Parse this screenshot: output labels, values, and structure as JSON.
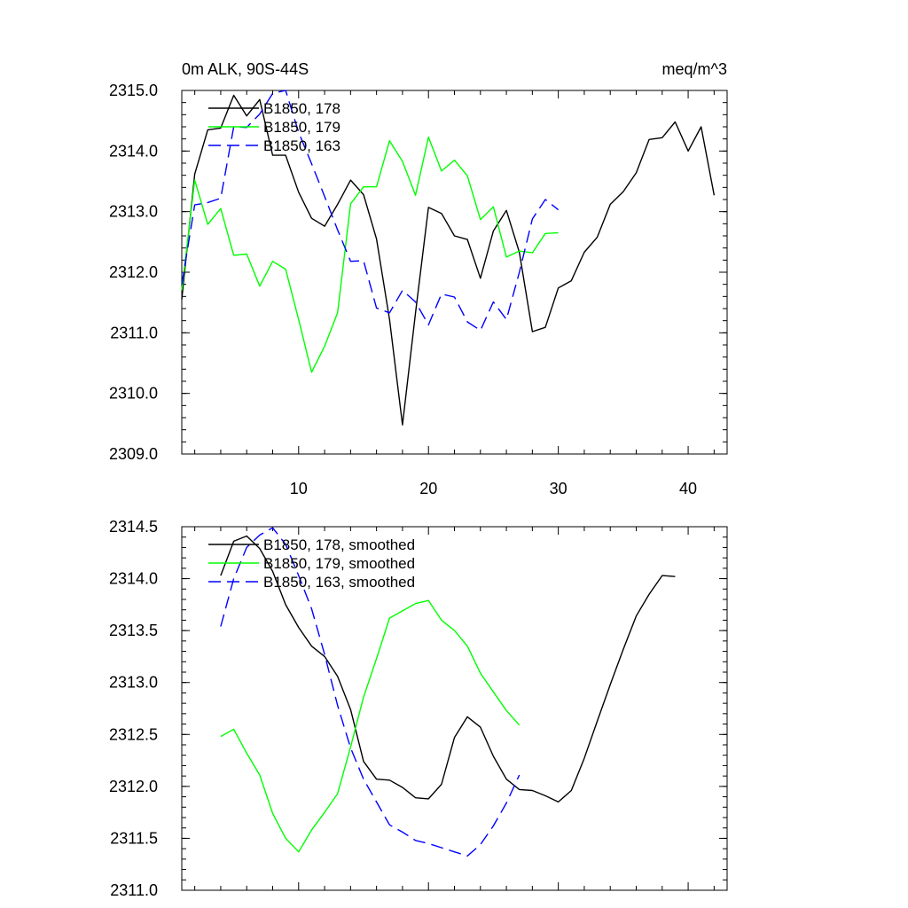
{
  "chart_data": [
    {
      "type": "line",
      "title_left": "0m ALK, 90S-44S",
      "title_right": "meq/m^3",
      "xlim": [
        1,
        43
      ],
      "ylim": [
        2309.0,
        2315.0
      ],
      "xticks": [
        10,
        20,
        30,
        40
      ],
      "xtick_labels": [
        "10",
        "20",
        "30",
        "40"
      ],
      "yticks": [
        2309.0,
        2310.0,
        2311.0,
        2312.0,
        2313.0,
        2314.0,
        2315.0
      ],
      "ytick_labels": [
        "2309.0",
        "2310.0",
        "2311.0",
        "2312.0",
        "2313.0",
        "2314.0",
        "2315.0"
      ],
      "legend_position": "top-left",
      "series": [
        {
          "name": "B1850, 178",
          "color": "#000000",
          "dash": "solid",
          "x": [
            1,
            2,
            3,
            4,
            5,
            6,
            7,
            8,
            9,
            10,
            11,
            12,
            13,
            14,
            15,
            16,
            17,
            18,
            19,
            20,
            21,
            22,
            23,
            24,
            25,
            26,
            27,
            28,
            29,
            30,
            31,
            32,
            33,
            34,
            35,
            36,
            37,
            38,
            39,
            40,
            41,
            42
          ],
          "y": [
            2311.55,
            2313.62,
            2314.35,
            2314.38,
            2314.92,
            2314.58,
            2314.85,
            2313.93,
            2313.93,
            2313.32,
            2312.89,
            2312.76,
            2313.12,
            2313.52,
            2313.28,
            2312.55,
            2311.22,
            2309.48,
            2311.33,
            2313.07,
            2312.97,
            2312.6,
            2312.54,
            2311.9,
            2312.68,
            2313.02,
            2312.33,
            2311.02,
            2311.09,
            2311.74,
            2311.86,
            2312.33,
            2312.58,
            2313.12,
            2313.33,
            2313.64,
            2314.19,
            2314.22,
            2314.48,
            2314.0,
            2314.4,
            2313.27
          ]
        },
        {
          "name": "B1850, 179",
          "color": "#00ff00",
          "dash": "solid",
          "x": [
            1,
            2,
            3,
            4,
            5,
            6,
            7,
            8,
            9,
            10,
            11,
            12,
            13,
            14,
            15,
            16,
            17,
            18,
            19,
            20,
            21,
            22,
            23,
            24,
            25,
            26,
            27,
            28,
            29,
            30
          ],
          "y": [
            2311.7,
            2313.52,
            2312.79,
            2313.05,
            2312.28,
            2312.3,
            2311.77,
            2312.18,
            2312.05,
            2311.22,
            2310.35,
            2310.78,
            2311.33,
            2313.13,
            2313.41,
            2313.41,
            2314.17,
            2313.83,
            2313.27,
            2314.23,
            2313.67,
            2313.85,
            2313.59,
            2312.87,
            2313.08,
            2312.25,
            2312.35,
            2312.32,
            2312.64,
            2312.65
          ]
        },
        {
          "name": "B1850, 163",
          "color": "#0000ff",
          "dash": "dashed",
          "x": [
            1,
            2,
            3,
            4,
            5,
            6,
            7,
            8,
            9,
            10,
            11,
            12,
            13,
            14,
            15,
            16,
            17,
            18,
            19,
            20,
            21,
            22,
            23,
            24,
            25,
            26,
            27,
            28,
            29,
            30
          ],
          "y": [
            2311.8,
            2313.11,
            2313.15,
            2313.22,
            2314.4,
            2314.39,
            2314.61,
            2314.95,
            2315.0,
            2314.31,
            2313.79,
            2313.25,
            2312.7,
            2312.18,
            2312.19,
            2311.41,
            2311.33,
            2311.7,
            2311.51,
            2311.13,
            2311.64,
            2311.59,
            2311.18,
            2311.04,
            2311.51,
            2311.22,
            2312.0,
            2312.88,
            2313.2,
            2313.03
          ]
        }
      ]
    },
    {
      "type": "line",
      "xlim": [
        1,
        43
      ],
      "ylim": [
        2311.0,
        2314.5
      ],
      "xticks": [
        10,
        20,
        30,
        40
      ],
      "yticks": [
        2311.0,
        2311.5,
        2312.0,
        2312.5,
        2313.0,
        2313.5,
        2314.0,
        2314.5
      ],
      "ytick_labels": [
        "2311.0",
        "2311.5",
        "2312.0",
        "2312.5",
        "2313.0",
        "2313.5",
        "2314.0",
        "2314.5"
      ],
      "legend_position": "top-left",
      "series": [
        {
          "name": "B1850, 178, smoothed",
          "color": "#000000",
          "dash": "solid",
          "x": [
            4,
            5,
            6,
            7,
            8,
            9,
            10,
            11,
            12,
            13,
            14,
            15,
            16,
            17,
            18,
            19,
            20,
            21,
            22,
            23,
            24,
            25,
            26,
            27,
            28,
            29,
            30,
            31,
            32,
            33,
            34,
            35,
            36,
            37,
            38,
            39
          ],
          "y": [
            2314.03,
            2314.36,
            2314.41,
            2314.29,
            2314.07,
            2313.75,
            2313.53,
            2313.35,
            2313.25,
            2313.06,
            2312.74,
            2312.24,
            2312.07,
            2312.06,
            2311.99,
            2311.89,
            2311.88,
            2312.02,
            2312.47,
            2312.67,
            2312.57,
            2312.29,
            2312.07,
            2311.97,
            2311.96,
            2311.91,
            2311.85,
            2311.96,
            2312.27,
            2312.63,
            2312.98,
            2313.32,
            2313.64,
            2313.85,
            2314.03,
            2314.02
          ]
        },
        {
          "name": "B1850, 179, smoothed",
          "color": "#00ff00",
          "dash": "solid",
          "x": [
            4,
            5,
            6,
            7,
            8,
            9,
            10,
            11,
            12,
            13,
            14,
            15,
            16,
            17,
            18,
            19,
            20,
            21,
            22,
            23,
            24,
            25,
            26,
            27
          ],
          "y": [
            2312.48,
            2312.55,
            2312.32,
            2312.11,
            2311.74,
            2311.5,
            2311.37,
            2311.58,
            2311.75,
            2311.93,
            2312.38,
            2312.86,
            2313.23,
            2313.62,
            2313.69,
            2313.76,
            2313.79,
            2313.6,
            2313.5,
            2313.35,
            2313.09,
            2312.91,
            2312.73,
            2312.59
          ]
        },
        {
          "name": "B1850, 163, smoothed",
          "color": "#0000ff",
          "dash": "dashed",
          "x": [
            4,
            5,
            6,
            7,
            8,
            9,
            10,
            11,
            12,
            13,
            14,
            15,
            16,
            17,
            18,
            19,
            20,
            21,
            22,
            23,
            24,
            25,
            26,
            27
          ],
          "y": [
            2313.54,
            2314.0,
            2314.3,
            2314.42,
            2314.49,
            2314.33,
            2314.03,
            2313.71,
            2313.27,
            2312.78,
            2312.37,
            2312.07,
            2311.85,
            2311.63,
            2311.56,
            2311.48,
            2311.45,
            2311.41,
            2311.37,
            2311.33,
            2311.44,
            2311.62,
            2311.84,
            2312.11
          ]
        }
      ]
    }
  ]
}
